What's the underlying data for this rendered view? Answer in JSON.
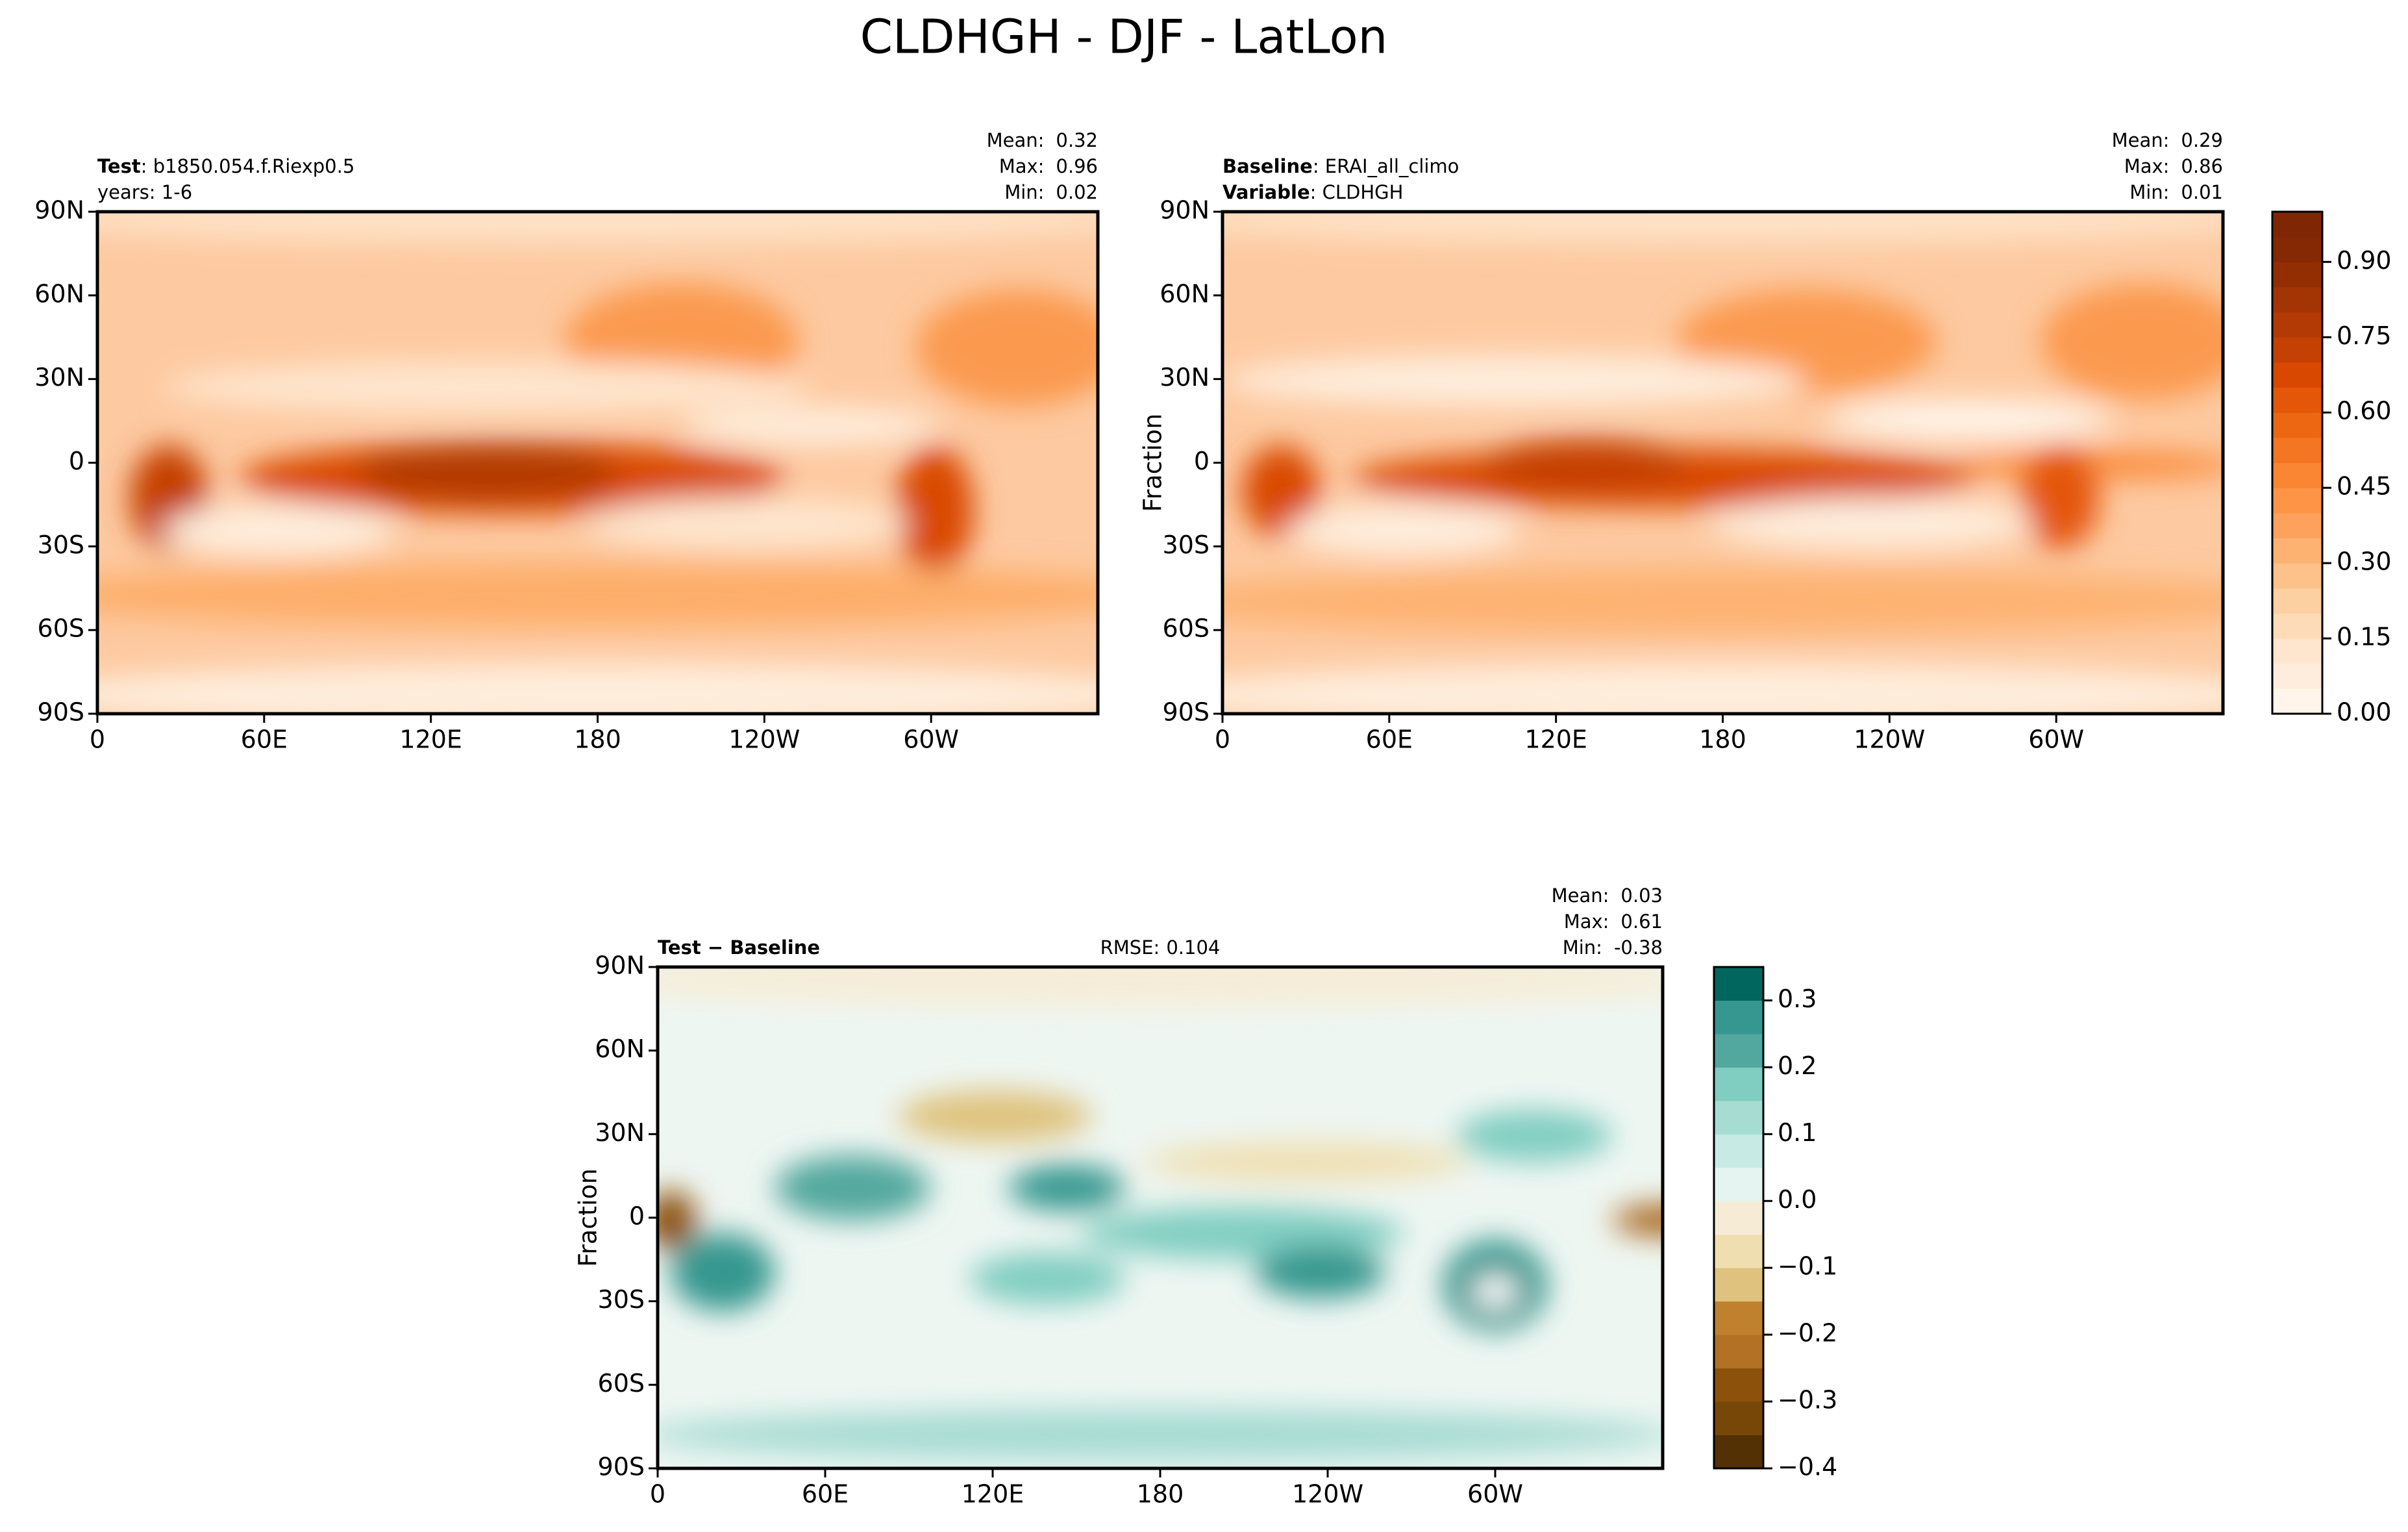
{
  "title": "CLDHGH - DJF - LatLon",
  "chart_data": [
    {
      "type": "contour-map",
      "subtitle_lines": [
        [
          {
            "text": "Test",
            "bold": true
          },
          {
            "text": ": b1850.054.f.Riexp0.5"
          }
        ],
        [
          {
            "text": "years: 1-6"
          }
        ]
      ],
      "stats": [
        {
          "name": "Mean:",
          "value": 0.32
        },
        {
          "name": "Max:",
          "value": 0.96
        },
        {
          "name": "Min:",
          "value": 0.02
        }
      ],
      "xlim": [
        0,
        360
      ],
      "xticks": [
        0,
        {
          "value": 60,
          "label": "60E"
        },
        {
          "value": 120,
          "label": "120E"
        },
        180,
        {
          "value": 240,
          "label": "120W"
        },
        {
          "value": 300,
          "label": "60W"
        }
      ],
      "ylim": [
        -90,
        90
      ],
      "yticks": [
        {
          "value": -90,
          "label": "90S"
        },
        {
          "value": -60,
          "label": "60S"
        },
        {
          "value": -30,
          "label": "30S"
        },
        0,
        {
          "value": 30,
          "label": "30N"
        },
        {
          "value": 60,
          "label": "60N"
        },
        {
          "value": 90,
          "label": "90N"
        }
      ]
    },
    {
      "type": "contour-map",
      "subtitle_lines": [
        [
          {
            "text": "Baseline",
            "bold": true
          },
          {
            "text": ": ERAI_all_climo"
          }
        ],
        [
          {
            "text": "Variable",
            "bold": true
          },
          {
            "text": ": CLDHGH"
          }
        ]
      ],
      "stats": [
        {
          "name": "Mean:",
          "value": 0.29
        },
        {
          "name": "Max:",
          "value": 0.86
        },
        {
          "name": "Min:",
          "value": 0.01
        }
      ],
      "ylabel": "Fraction",
      "xlim": [
        0,
        360
      ],
      "xticks": [
        0,
        {
          "value": 60,
          "label": "60E"
        },
        {
          "value": 120,
          "label": "120E"
        },
        180,
        {
          "value": 240,
          "label": "120W"
        },
        {
          "value": 300,
          "label": "60W"
        }
      ],
      "ylim": [
        -90,
        90
      ],
      "yticks": [
        {
          "value": -90,
          "label": "90S"
        },
        {
          "value": -60,
          "label": "60S"
        },
        {
          "value": -30,
          "label": "30S"
        },
        0,
        {
          "value": 30,
          "label": "30N"
        },
        {
          "value": 60,
          "label": "60N"
        },
        {
          "value": 90,
          "label": "90N"
        }
      ],
      "colorbar": {
        "clim": [
          0,
          1
        ],
        "ticks": [
          {
            "value": 0,
            "label": "0.00"
          },
          {
            "value": 0.15,
            "label": "0.15"
          },
          {
            "value": 0.3,
            "label": "0.30"
          },
          {
            "value": 0.45,
            "label": "0.45"
          },
          {
            "value": 0.6,
            "label": "0.60"
          },
          {
            "value": 0.75,
            "label": "0.75"
          },
          {
            "value": 0.9,
            "label": "0.90"
          }
        ],
        "colors": [
          "#fff5eb",
          "#feeddc",
          "#fee6ce",
          "#fddbb8",
          "#fdd0a2",
          "#fdc18a",
          "#fdb272",
          "#fda25c",
          "#fd9446",
          "#fa8533",
          "#f57622",
          "#ed6712",
          "#e45709",
          "#d94801",
          "#c44103",
          "#b33a04",
          "#a33403",
          "#932e03",
          "#842904",
          "#7f2704"
        ]
      }
    },
    {
      "type": "contour-map",
      "subtitle_lines": [
        [
          {
            "text": "Test − Baseline",
            "bold": true
          }
        ]
      ],
      "center_text": {
        "name": "RMSE:",
        "value": 0.104
      },
      "stats": [
        {
          "name": "Mean:",
          "value": 0.03
        },
        {
          "name": "Max:",
          "value": 0.61
        },
        {
          "name": "Min:",
          "value": -0.38
        }
      ],
      "ylabel": "Fraction",
      "xlim": [
        0,
        360
      ],
      "xticks": [
        0,
        {
          "value": 60,
          "label": "60E"
        },
        {
          "value": 120,
          "label": "120E"
        },
        180,
        {
          "value": 240,
          "label": "120W"
        },
        {
          "value": 300,
          "label": "60W"
        }
      ],
      "ylim": [
        -90,
        90
      ],
      "yticks": [
        {
          "value": -90,
          "label": "90S"
        },
        {
          "value": -60,
          "label": "60S"
        },
        {
          "value": -30,
          "label": "30S"
        },
        0,
        {
          "value": 30,
          "label": "30N"
        },
        {
          "value": 60,
          "label": "60N"
        },
        {
          "value": 90,
          "label": "90N"
        }
      ],
      "colorbar": {
        "clim": [
          -0.4,
          0.35
        ],
        "ticks": [
          {
            "value": -0.4,
            "label": "−0.4"
          },
          {
            "value": -0.3,
            "label": "−0.3"
          },
          {
            "value": -0.2,
            "label": "−0.2"
          },
          {
            "value": -0.1,
            "label": "−0.1"
          },
          {
            "value": 0,
            "label": "0.0"
          },
          0.1,
          0.2,
          0.3
        ],
        "colors": [
          "#543005",
          "#774707",
          "#8c510a",
          "#b27124",
          "#bf812d",
          "#dfc27d",
          "#efdfb0",
          "#f6ecd6",
          "#e6f4f1",
          "#c7eae5",
          "#a7dcd3",
          "#80cdc1",
          "#52a89e",
          "#35978f",
          "#01665e"
        ]
      }
    }
  ]
}
